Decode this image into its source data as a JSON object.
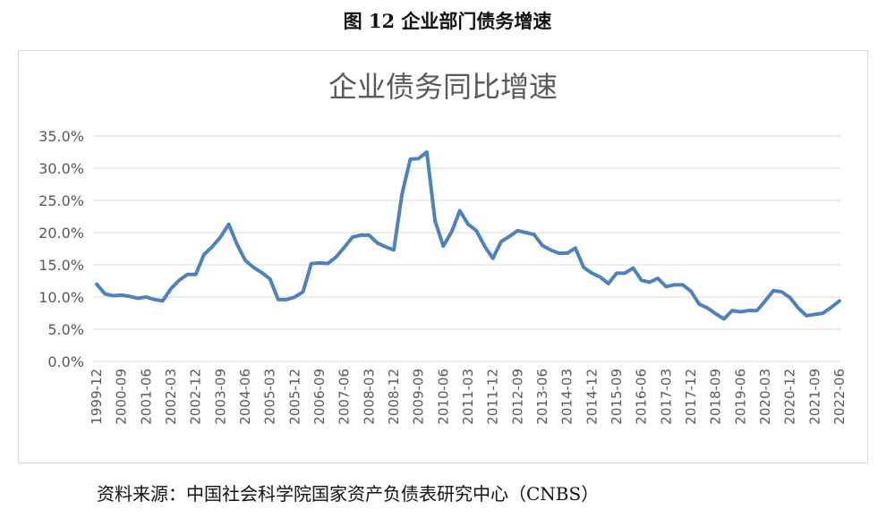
{
  "figure_title": "图 12  企业部门债务增速",
  "source_note": "资料来源：中国社会科学院国家资产负债表研究中心（CNBS）",
  "colors": {
    "line": "#4f81bd",
    "grid": "#d9d9d9",
    "text": "#595959"
  },
  "chart_data": {
    "type": "line",
    "title": "企业债务同比增速",
    "xlabel": "",
    "ylabel": "",
    "ylim": [
      0,
      35
    ],
    "ytick_labels": [
      "0.0%",
      "5.0%",
      "10.0%",
      "15.0%",
      "20.0%",
      "25.0%",
      "30.0%",
      "35.0%"
    ],
    "x": [
      "1999-12",
      "2000-03",
      "2000-06",
      "2000-09",
      "2000-12",
      "2001-03",
      "2001-06",
      "2001-09",
      "2001-12",
      "2002-03",
      "2002-06",
      "2002-09",
      "2002-12",
      "2003-03",
      "2003-06",
      "2003-09",
      "2003-12",
      "2004-03",
      "2004-06",
      "2004-09",
      "2004-12",
      "2005-03",
      "2005-06",
      "2005-09",
      "2005-12",
      "2006-03",
      "2006-06",
      "2006-09",
      "2006-12",
      "2007-03",
      "2007-06",
      "2007-09",
      "2007-12",
      "2008-03",
      "2008-06",
      "2008-09",
      "2008-12",
      "2009-03",
      "2009-06",
      "2009-09",
      "2009-12",
      "2010-03",
      "2010-06",
      "2010-09",
      "2010-12",
      "2011-03",
      "2011-06",
      "2011-09",
      "2011-12",
      "2012-03",
      "2012-06",
      "2012-09",
      "2012-12",
      "2013-03",
      "2013-06",
      "2013-09",
      "2013-12",
      "2014-03",
      "2014-06",
      "2014-09",
      "2014-12",
      "2015-03",
      "2015-06",
      "2015-09",
      "2015-12",
      "2016-03",
      "2016-06",
      "2016-09",
      "2016-12",
      "2017-03",
      "2017-06",
      "2017-09",
      "2017-12",
      "2018-03",
      "2018-06",
      "2018-09",
      "2018-12",
      "2019-03",
      "2019-06",
      "2019-09",
      "2019-12",
      "2020-03",
      "2020-06",
      "2020-09",
      "2020-12",
      "2021-03",
      "2021-06",
      "2021-09",
      "2021-12",
      "2022-03",
      "2022-06"
    ],
    "xtick_labels": [
      "1999-12",
      "2000-09",
      "2001-06",
      "2002-03",
      "2002-12",
      "2003-09",
      "2004-06",
      "2005-03",
      "2005-12",
      "2006-09",
      "2007-06",
      "2008-03",
      "2008-12",
      "2009-09",
      "2010-06",
      "2011-03",
      "2011-12",
      "2012-09",
      "2013-06",
      "2014-03",
      "2014-12",
      "2015-09",
      "2016-06",
      "2017-03",
      "2017-12",
      "2018-09",
      "2019-06",
      "2020-03",
      "2020-12",
      "2021-09",
      "2022-06"
    ],
    "series": [
      {
        "values": [
          12.0,
          10.5,
          10.2,
          10.3,
          10.1,
          9.8,
          10.0,
          9.6,
          9.4,
          11.3,
          12.6,
          13.5,
          13.5,
          16.6,
          17.8,
          19.3,
          21.3,
          18.2,
          15.7,
          14.6,
          13.8,
          12.8,
          9.6,
          9.6,
          10.0,
          10.8,
          15.2,
          15.3,
          15.2,
          16.2,
          17.7,
          19.3,
          19.6,
          19.6,
          18.4,
          17.8,
          17.3,
          26.0,
          31.4,
          31.5,
          32.5,
          21.8,
          17.9,
          20.1,
          23.4,
          21.3,
          20.3,
          17.9,
          16.0,
          18.6,
          19.4,
          20.3,
          20.0,
          19.7,
          18.0,
          17.3,
          16.8,
          16.8,
          17.6,
          14.6,
          13.7,
          13.1,
          12.1,
          13.7,
          13.7,
          14.5,
          12.6,
          12.3,
          12.9,
          11.6,
          11.9,
          11.9,
          10.9,
          8.9,
          8.3,
          7.4,
          6.6,
          7.9,
          7.7,
          7.9,
          7.9,
          9.4,
          11.0,
          10.8,
          9.9,
          8.3,
          7.1,
          7.3,
          7.5,
          8.4,
          9.4
        ]
      }
    ],
    "grid": true,
    "legend": "none"
  }
}
